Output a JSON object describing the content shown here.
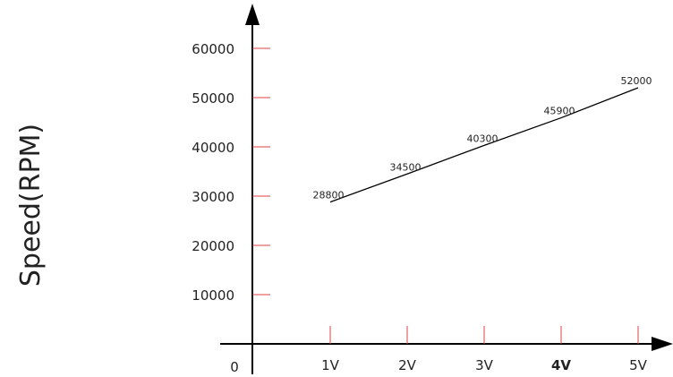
{
  "chart_data": {
    "type": "line",
    "title": "",
    "xlabel": "",
    "ylabel": "Speed(RPM)",
    "origin_label": "0",
    "x_categories": [
      "1V",
      "2V",
      "3V",
      "4V",
      "5V"
    ],
    "y_ticks": [
      10000,
      20000,
      30000,
      40000,
      50000,
      60000
    ],
    "y_tick_labels": [
      "10000",
      "20000",
      "30000",
      "40000",
      "50000",
      "60000"
    ],
    "ylim": [
      0,
      60000
    ],
    "grid": false,
    "legend": "none",
    "series": [
      {
        "x": [
          1,
          2,
          3,
          4,
          5
        ],
        "values": [
          28800,
          34500,
          40300,
          45900,
          52000
        ],
        "data_labels": [
          "28800",
          "34500",
          "40300",
          "45900",
          "52000"
        ]
      }
    ],
    "colors": {
      "axis": "#000000",
      "ticks": "#e04040",
      "line": "#000000",
      "text": "#222222"
    }
  }
}
